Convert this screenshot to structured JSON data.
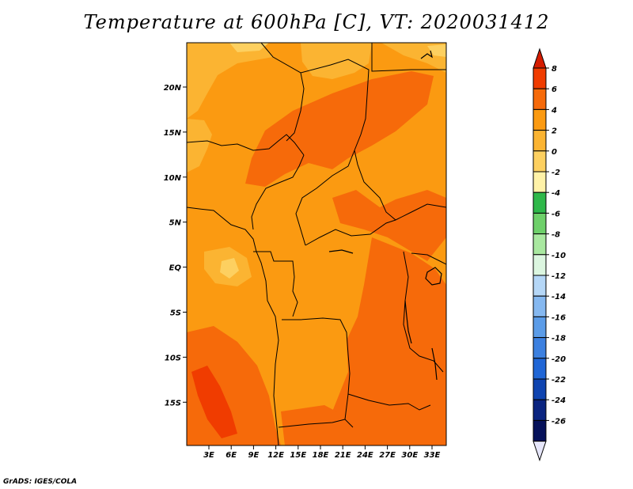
{
  "title": "Temperature at 600hPa [C], VT: 2020031412",
  "credit": "GrADS: IGES/COLA",
  "map": {
    "lat_labels": [
      "20N",
      "15N",
      "10N",
      "5N",
      "EQ",
      "5S",
      "10S",
      "15S"
    ],
    "lon_labels": [
      "3E",
      "6E",
      "9E",
      "12E",
      "15E",
      "18E",
      "21E",
      "24E",
      "27E",
      "30E",
      "33E"
    ]
  },
  "colorbar": {
    "labels": [
      "8",
      "6",
      "4",
      "2",
      "0",
      "-2",
      "-4",
      "-6",
      "-8",
      "-10",
      "-12",
      "-14",
      "-16",
      "-18",
      "-20",
      "-22",
      "-24",
      "-26"
    ],
    "colors": [
      "#d51c00",
      "#f03c00",
      "#f66a0a",
      "#fb9a11",
      "#fbb432",
      "#fdd060",
      "#fff2a8",
      "#2fb84a",
      "#6ed06a",
      "#a9e8a0",
      "#dcf6e0",
      "#b5d7f7",
      "#85b8f0",
      "#5b9ce8",
      "#3c80e0",
      "#2066d6",
      "#0f44b0",
      "#0a2480",
      "#05115a",
      "#e6e6fa"
    ]
  }
}
